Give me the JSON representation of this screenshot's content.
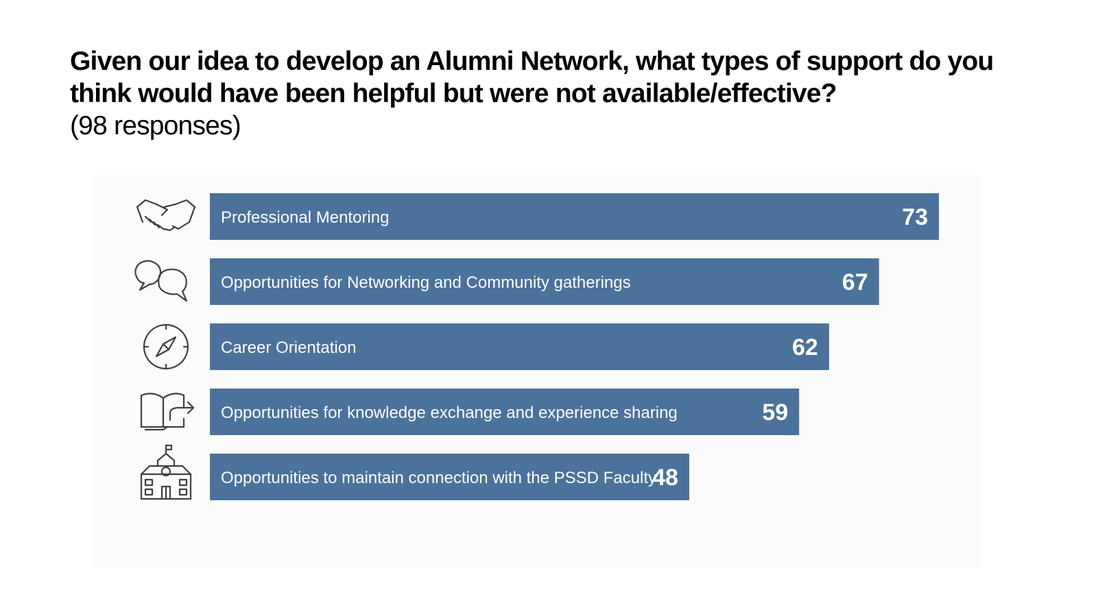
{
  "header": {
    "question": "Given our idea to develop an Alumni Network, what types of support do you think would have been helpful but were not available/effective?",
    "responses": "(98 responses)"
  },
  "colors": {
    "bar": "#4A729B",
    "label": "#FFFFFF",
    "icon": "#3F3F3F"
  },
  "chart_data": {
    "type": "bar",
    "orientation": "horizontal",
    "categories": [
      "Professional Mentoring",
      "Opportunities for Networking and Community gatherings",
      "Career Orientation",
      "Opportunities for knowledge exchange and experience sharing",
      "Opportunities to maintain connection with the PSSD Faculty"
    ],
    "values": [
      73,
      67,
      62,
      59,
      48
    ],
    "icons": [
      "handshake-icon",
      "speech-bubbles-icon",
      "compass-icon",
      "open-book-icon",
      "school-building-icon"
    ],
    "xlim": [
      0,
      73
    ],
    "grid": false,
    "legend": "none"
  }
}
